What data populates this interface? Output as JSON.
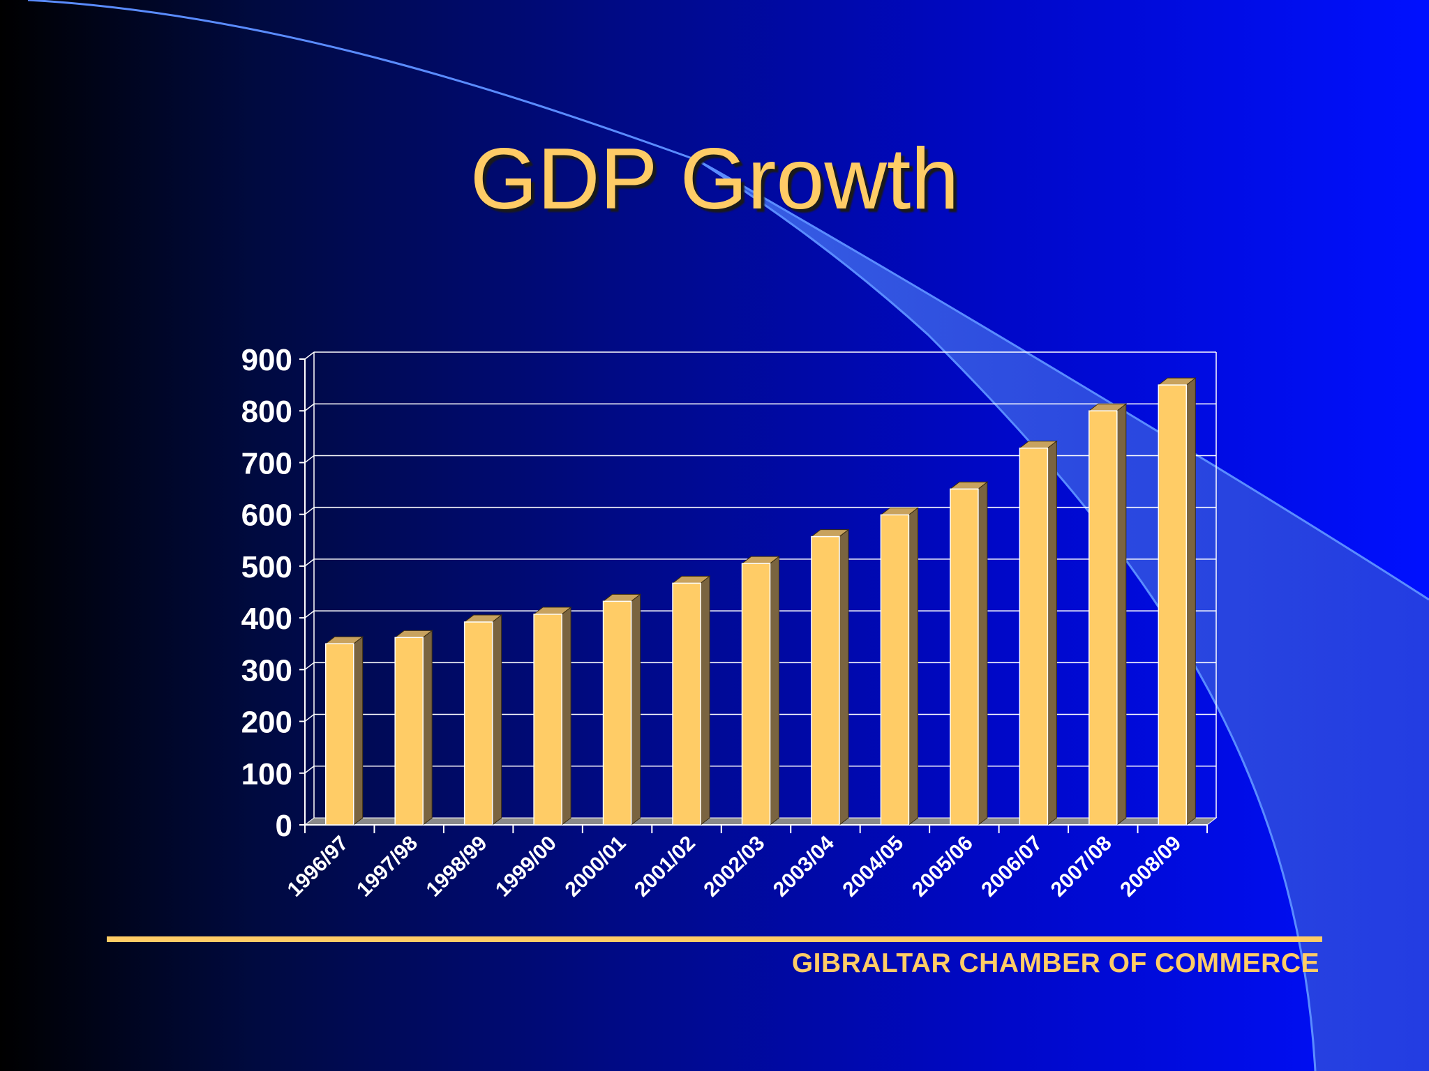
{
  "slide": {
    "title": "GDP Growth",
    "footer": "GIBRALTAR CHAMBER OF COMMERCE"
  },
  "colors": {
    "title": "#ffcc66",
    "bar_front": "#ffcc66",
    "bar_side": "#7a6440",
    "bar_top": "#c8a25e",
    "grid": "#ffffff",
    "axis_text": "#ffffff"
  },
  "chart_data": {
    "type": "bar",
    "title": "",
    "xlabel": "",
    "ylabel": "",
    "categories": [
      "1996/97",
      "1997/98",
      "1998/99",
      "1999/00",
      "2000/01",
      "2001/02",
      "2002/03",
      "2003/04",
      "2004/05",
      "2005/06",
      "2006/07",
      "2007/08",
      "2008/09"
    ],
    "values": [
      350,
      362,
      392,
      407,
      432,
      467,
      505,
      557,
      599,
      649,
      728,
      800,
      850
    ],
    "ylim": [
      0,
      900
    ],
    "yticks": [
      0,
      100,
      200,
      300,
      400,
      500,
      600,
      700,
      800,
      900
    ],
    "grid": true,
    "legend": "none",
    "style": "3d-columns"
  }
}
